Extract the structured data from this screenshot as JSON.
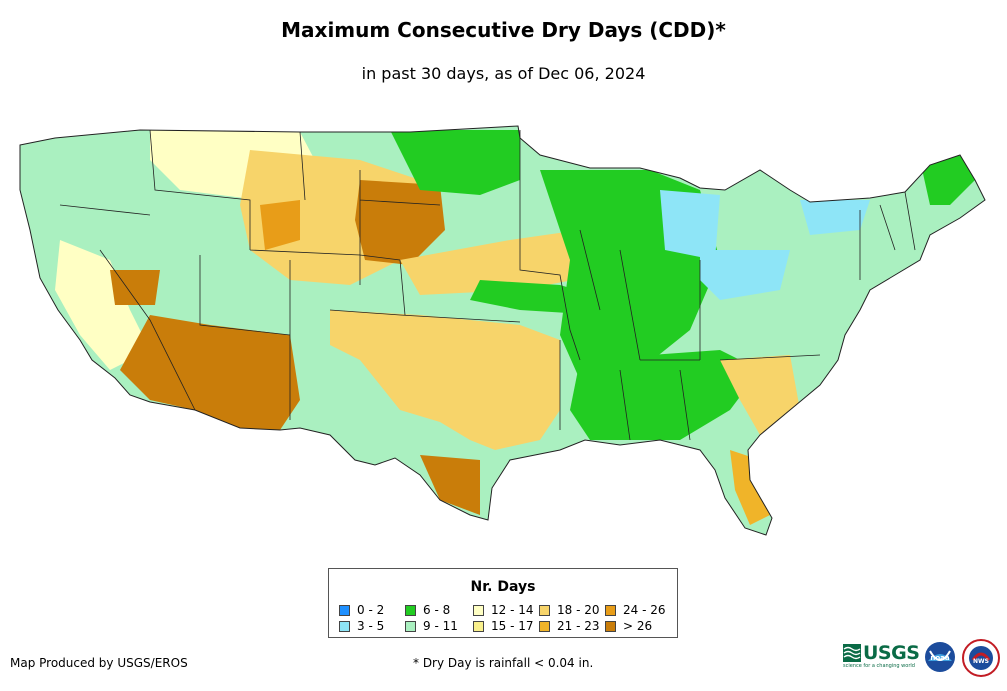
{
  "title": "Maximum Consecutive Dry Days (CDD)*",
  "subtitle": "in past 30 days, as of Dec 06, 2024",
  "legend": {
    "title": "Nr. Days",
    "items": [
      {
        "label": "0 - 2",
        "color": "#1e90ff"
      },
      {
        "label": "3 - 5",
        "color": "#8ee5f7"
      },
      {
        "label": "6 - 8",
        "color": "#22cc22"
      },
      {
        "label": "9 - 11",
        "color": "#aaf0c0"
      },
      {
        "label": "12 - 14",
        "color": "#ffffc4"
      },
      {
        "label": "15 - 17",
        "color": "#f9f08c"
      },
      {
        "label": "18 - 20",
        "color": "#f7d46a"
      },
      {
        "label": "21 - 23",
        "color": "#f0b429"
      },
      {
        "label": "24 - 26",
        "color": "#e89d18"
      },
      {
        "label": "> 26",
        "color": "#c97d0a"
      }
    ]
  },
  "credit": "Map Produced by USGS/EROS",
  "footnote": "* Dry Day is rainfall < 0.04 in.",
  "logos": {
    "usgs": "USGS",
    "usgs_tagline": "science for a changing world",
    "noaa": "noaa",
    "nws": "NWS"
  }
}
